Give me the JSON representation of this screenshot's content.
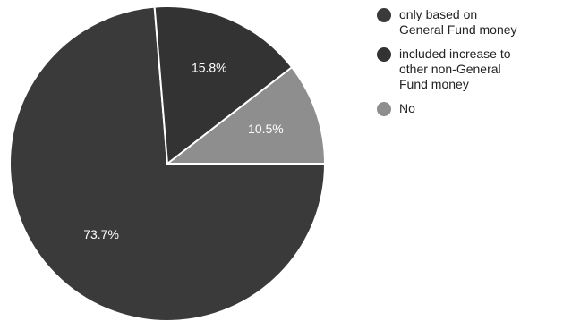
{
  "chart_data": {
    "type": "pie",
    "slices": [
      {
        "label": "only based on\nGeneral Fund money",
        "value": 73.7,
        "data_label": "73.7%",
        "color": "#3a3a3a"
      },
      {
        "label": "included increase to\nother non-General\nFund money",
        "value": 15.8,
        "data_label": "15.8%",
        "color": "#333333"
      },
      {
        "label": "No",
        "value": 10.5,
        "data_label": "10.5%",
        "color": "#8e8e8e"
      }
    ],
    "start_angle_deg": 0,
    "direction": "clockwise",
    "legend_position": "right",
    "slice_border_color": "#ffffff"
  }
}
